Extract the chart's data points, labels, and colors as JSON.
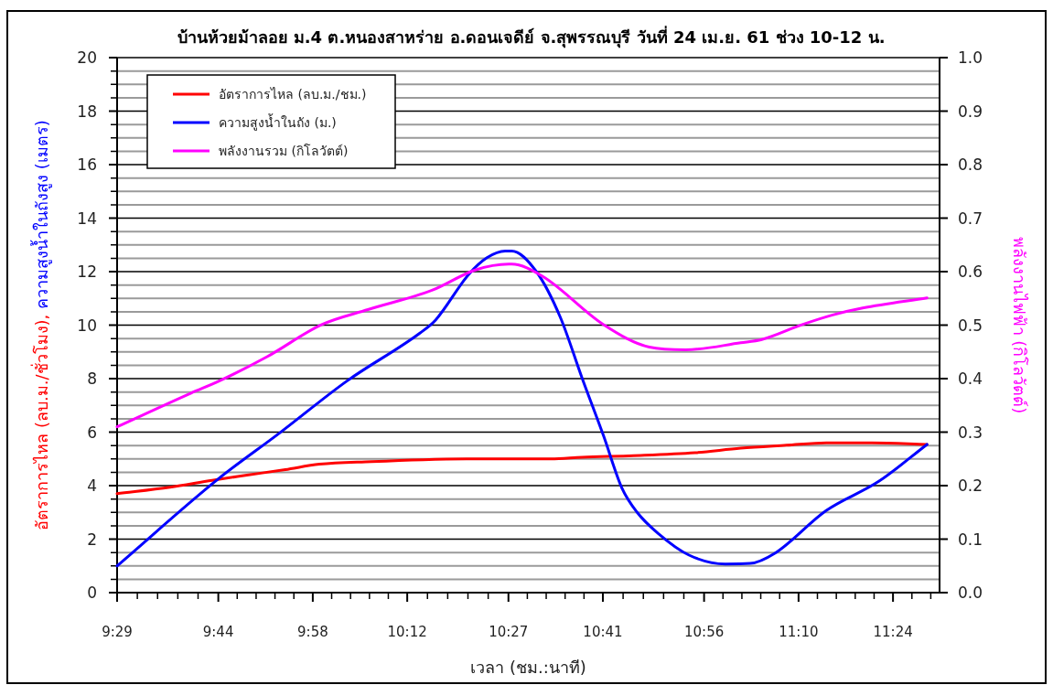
{
  "chart_data": {
    "type": "line",
    "title": "บ้านห้วยม้าลอย ม.4 ต.หนองสาหร่าย อ.ดอนเจดีย์ จ.สุพรรณบุรี วันที่ 24 เม.ย. 61 ช่วง 10-12 น.",
    "xlabel": "เวลา (ชม.:นาที)",
    "ylabel": [
      "อัตราการไหล (ลบ.ม./ชั่วโมง), ",
      "ความสูงน้ำในถังสูง (เมตร)"
    ],
    "y2label": "พลังงานไฟฟ้า (กิโลวัตต์)",
    "legend": "top left",
    "grid": "y",
    "marker": "none",
    "line_style": "solid",
    "xlim": [
      9.4833,
      11.515
    ],
    "xticks": [
      {
        "value": 9.4833,
        "label": "9:29"
      },
      {
        "value": 9.5333,
        "label": null
      },
      {
        "value": 9.5833,
        "label": null
      },
      {
        "value": 9.6333,
        "label": null
      },
      {
        "value": 9.6833,
        "label": null
      },
      {
        "value": 9.7333,
        "label": "9:44"
      },
      {
        "value": 9.78,
        "label": null
      },
      {
        "value": 9.8267,
        "label": null
      },
      {
        "value": 9.8733,
        "label": null
      },
      {
        "value": 9.92,
        "label": null
      },
      {
        "value": 9.9667,
        "label": "9:58"
      },
      {
        "value": 10.0133,
        "label": null
      },
      {
        "value": 10.06,
        "label": null
      },
      {
        "value": 10.1067,
        "label": null
      },
      {
        "value": 10.1533,
        "label": null
      },
      {
        "value": 10.2,
        "label": "10:12"
      },
      {
        "value": 10.25,
        "label": null
      },
      {
        "value": 10.3,
        "label": null
      },
      {
        "value": 10.35,
        "label": null
      },
      {
        "value": 10.4,
        "label": null
      },
      {
        "value": 10.45,
        "label": "10:27"
      },
      {
        "value": 10.4967,
        "label": null
      },
      {
        "value": 10.5433,
        "label": null
      },
      {
        "value": 10.59,
        "label": null
      },
      {
        "value": 10.6367,
        "label": null
      },
      {
        "value": 10.6833,
        "label": "10:41"
      },
      {
        "value": 10.7333,
        "label": null
      },
      {
        "value": 10.7833,
        "label": null
      },
      {
        "value": 10.8333,
        "label": null
      },
      {
        "value": 10.8833,
        "label": null
      },
      {
        "value": 10.9333,
        "label": "10:56"
      },
      {
        "value": 10.98,
        "label": null
      },
      {
        "value": 11.0267,
        "label": null
      },
      {
        "value": 11.0733,
        "label": null
      },
      {
        "value": 11.12,
        "label": null
      },
      {
        "value": 11.1667,
        "label": "11:10"
      },
      {
        "value": 11.2133,
        "label": null
      },
      {
        "value": 11.26,
        "label": null
      },
      {
        "value": 11.3067,
        "label": null
      },
      {
        "value": 11.3533,
        "label": null
      },
      {
        "value": 11.4,
        "label": "11:24"
      },
      {
        "value": 11.4467,
        "label": null
      },
      {
        "value": 11.4933,
        "label": null
      }
    ],
    "ylim": [
      0,
      20
    ],
    "yticks": [
      0,
      {
        "value": 0.5,
        "label": null
      },
      {
        "value": 1,
        "label": null
      },
      {
        "value": 1.5,
        "label": null
      },
      2,
      {
        "value": 2.5,
        "label": null
      },
      {
        "value": 3,
        "label": null
      },
      {
        "value": 3.5,
        "label": null
      },
      4,
      {
        "value": 4.5,
        "label": null
      },
      {
        "value": 5,
        "label": null
      },
      {
        "value": 5.5,
        "label": null
      },
      6,
      {
        "value": 6.5,
        "label": null
      },
      {
        "value": 7,
        "label": null
      },
      {
        "value": 7.5,
        "label": null
      },
      8,
      {
        "value": 8.5,
        "label": null
      },
      {
        "value": 9,
        "label": null
      },
      {
        "value": 9.5,
        "label": null
      },
      10,
      {
        "value": 10.5,
        "label": null
      },
      {
        "value": 11,
        "label": null
      },
      {
        "value": 11.5,
        "label": null
      },
      12,
      {
        "value": 12.5,
        "label": null
      },
      {
        "value": 13,
        "label": null
      },
      {
        "value": 13.5,
        "label": null
      },
      14,
      {
        "value": 14.5,
        "label": null
      },
      {
        "value": 15,
        "label": null
      },
      {
        "value": 15.5,
        "label": null
      },
      16,
      {
        "value": 16.5,
        "label": null
      },
      {
        "value": 17,
        "label": null
      },
      {
        "value": 17.5,
        "label": null
      },
      18,
      {
        "value": 18.5,
        "label": null
      },
      {
        "value": 19,
        "label": null
      },
      {
        "value": 19.5,
        "label": null
      },
      20
    ],
    "y2lim": [
      0,
      1
    ],
    "y2ticks": [
      {
        "value": 0,
        "label": "0.0"
      },
      0.1,
      0.2,
      0.3,
      0.4,
      0.5,
      0.6,
      0.7,
      0.8,
      0.9,
      {
        "value": 1,
        "label": "1.0"
      }
    ],
    "series": [
      {
        "name": "อัตราการไหล (ลบ.ม./ชม.)",
        "color": "#ff0000",
        "axis": "y",
        "x": [
          9.4833,
          9.614,
          9.718,
          9.808,
          9.899,
          9.983,
          10.112,
          10.239,
          10.368,
          10.458,
          10.555,
          10.632,
          10.759,
          10.911,
          11.024,
          11.137,
          11.235,
          11.348,
          11.484
        ],
        "values": [
          3.7,
          3.94,
          4.2,
          4.4,
          4.6,
          4.8,
          4.9,
          4.97,
          5.0,
          5.0,
          5.0,
          5.06,
          5.12,
          5.23,
          5.4,
          5.51,
          5.6,
          5.6,
          5.54
        ]
      },
      {
        "name": "ความสูงน้ำในถัง (ม.)",
        "color": "#0000ff",
        "axis": "y",
        "x": [
          9.4833,
          9.734,
          9.885,
          10.051,
          10.232,
          10.27,
          10.352,
          10.397,
          10.442,
          10.458,
          10.519,
          10.578,
          10.632,
          10.685,
          10.73,
          10.768,
          10.82,
          10.895,
          10.986,
          11.047,
          11.108,
          11.235,
          11.364,
          11.484
        ],
        "values": [
          1.0,
          4.26,
          5.97,
          7.91,
          9.71,
          10.19,
          11.9,
          12.52,
          12.77,
          12.77,
          12.0,
          10.3,
          8.02,
          5.86,
          3.92,
          3.0,
          2.21,
          1.41,
          1.07,
          1.09,
          1.47,
          3.07,
          4.15,
          5.54
        ]
      },
      {
        "name": "พลังงานรวม (กิโลวัตต์)",
        "color": "#ff00ff",
        "axis": "y2",
        "x": [
          9.4833,
          9.666,
          9.734,
          9.854,
          9.989,
          10.103,
          10.261,
          10.368,
          10.451,
          10.458,
          10.533,
          10.685,
          10.798,
          10.888,
          11.024,
          11.076,
          11.176,
          11.251,
          11.325,
          11.484
        ],
        "values": [
          0.31,
          0.373,
          0.395,
          0.441,
          0.501,
          0.529,
          0.565,
          0.603,
          0.614,
          0.614,
          0.592,
          0.501,
          0.459,
          0.454,
          0.467,
          0.473,
          0.501,
          0.519,
          0.532,
          0.551
        ]
      }
    ]
  }
}
